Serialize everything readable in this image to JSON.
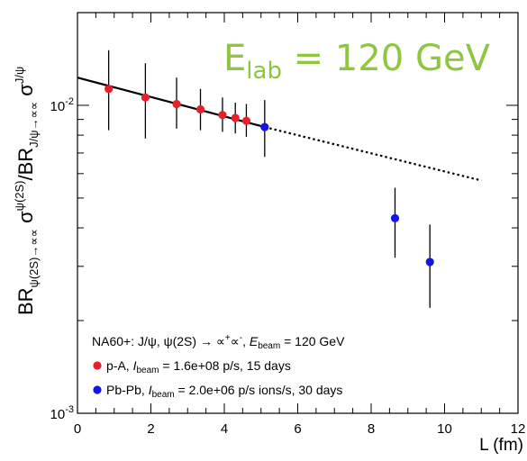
{
  "chart_data": {
    "type": "scatter",
    "title": "",
    "ylabel": {
      "parts": [
        {
          "t": "BR",
          "sub": "ψ(2S)→∝∝"
        },
        {
          "t": " σ",
          "sup": "ψ(2S)"
        },
        {
          "t": "/BR",
          "sub": "J/ψ→∝∝"
        },
        {
          "t": " σ",
          "sup": "J/ψ"
        }
      ]
    },
    "xlabel": "L (fm)",
    "xlim": [
      0,
      12
    ],
    "ylim": [
      0.001,
      0.02
    ],
    "y_scale": "log",
    "x_ticks": [
      "0",
      "2",
      "4",
      "6",
      "8",
      "10",
      "12"
    ],
    "y_ticks": [
      {
        "value": 0.01,
        "base": "10",
        "exp": "-2"
      },
      {
        "value": 0.001,
        "base": "10",
        "exp": "-3"
      }
    ],
    "annotation": {
      "main": "E",
      "sub": "lab",
      "rest": " = 120 GeV",
      "color": "#8ec63f"
    },
    "fit_line": {
      "solid": {
        "x": [
          0,
          5.1
        ],
        "y": [
          0.0123,
          0.0085
        ]
      },
      "dotted": {
        "x": [
          5.1,
          11.0
        ],
        "y": [
          0.0085,
          0.0057
        ]
      }
    },
    "series": [
      {
        "name": "p-A",
        "color": "#e8202a",
        "x": [
          0.85,
          1.85,
          2.7,
          3.35,
          3.95,
          4.3,
          4.6
        ],
        "y": [
          0.0113,
          0.0106,
          0.0101,
          0.0097,
          0.0093,
          0.0091,
          0.0089
        ],
        "err_low": [
          0.0083,
          0.0078,
          0.0084,
          0.0083,
          0.0082,
          0.0081,
          0.0079
        ],
        "err_high": [
          0.0151,
          0.0137,
          0.0123,
          0.0113,
          0.0106,
          0.0102,
          0.0101
        ]
      },
      {
        "name": "Pb-Pb",
        "color": "#1515e8",
        "x": [
          5.1,
          8.65,
          9.6
        ],
        "y": [
          0.0085,
          0.0043,
          0.0031
        ],
        "err_low": [
          0.0068,
          0.0032,
          0.0022
        ],
        "err_high": [
          0.0104,
          0.0054,
          0.0041
        ]
      }
    ],
    "legend": {
      "placement": "bottom-left",
      "header": {
        "pre": "NA60+: J/ψ, ψ(2S) → ",
        "mu": "∝",
        "plus": "+",
        "minus": "-",
        "mid": ", ",
        "e": "E",
        "esub": "beam",
        "post": " = 120 GeV"
      },
      "entries": [
        {
          "name": "p-A, ",
          "i": "I",
          "isub": "beam",
          "rest": " = 1.6e+08 p/s, 15 days",
          "color": "#e8202a"
        },
        {
          "name": "Pb-Pb, ",
          "i": "I",
          "isub": "beam",
          "rest": " = 2.0e+06 p/s ions/s, 30 days",
          "color": "#1515e8"
        }
      ]
    }
  }
}
